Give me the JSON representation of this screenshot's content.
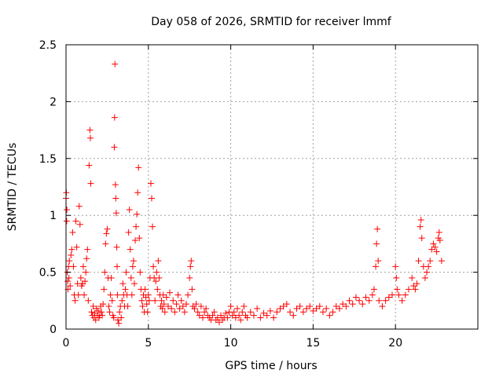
{
  "chart_data": {
    "type": "scatter",
    "title": "Day 058 of 2026, SRMTID for receiver lmmf",
    "xlabel": "GPS time / hours",
    "ylabel": "SRMTID / TECUs",
    "xlim": [
      0,
      25
    ],
    "ylim": [
      0,
      2.5
    ],
    "x_ticks": [
      0,
      5,
      10,
      15,
      20
    ],
    "x_tick_labels": [
      "0",
      "5",
      "10",
      "15",
      "20"
    ],
    "y_ticks": [
      0,
      0.5,
      1,
      1.5,
      2,
      2.5
    ],
    "y_tick_labels": [
      "0",
      "0.5",
      "1",
      "1.5",
      "2",
      "2.5"
    ],
    "grid": true,
    "marker": "+",
    "series": [
      {
        "name": "SRMTID",
        "color": "#ff0000",
        "points": [
          [
            0.0,
            1.15
          ],
          [
            0.02,
            1.2
          ],
          [
            0.04,
            0.95
          ],
          [
            0.05,
            1.05
          ],
          [
            0.08,
            0.5
          ],
          [
            0.1,
            0.42
          ],
          [
            0.12,
            0.35
          ],
          [
            0.15,
            0.55
          ],
          [
            0.18,
            0.45
          ],
          [
            0.2,
            0.6
          ],
          [
            0.25,
            0.38
          ],
          [
            0.3,
            0.65
          ],
          [
            0.35,
            0.7
          ],
          [
            0.4,
            0.85
          ],
          [
            0.45,
            0.55
          ],
          [
            0.5,
            0.3
          ],
          [
            0.55,
            0.25
          ],
          [
            0.6,
            0.95
          ],
          [
            0.65,
            0.72
          ],
          [
            0.7,
            0.4
          ],
          [
            0.75,
            0.3
          ],
          [
            0.8,
            1.08
          ],
          [
            0.85,
            0.92
          ],
          [
            0.9,
            0.45
          ],
          [
            0.95,
            0.38
          ],
          [
            1.0,
            0.4
          ],
          [
            1.05,
            0.55
          ],
          [
            1.1,
            0.3
          ],
          [
            1.15,
            0.42
          ],
          [
            1.2,
            0.5
          ],
          [
            1.25,
            0.62
          ],
          [
            1.3,
            0.7
          ],
          [
            1.35,
            0.25
          ],
          [
            1.4,
            1.44
          ],
          [
            1.45,
            1.75
          ],
          [
            1.48,
            1.68
          ],
          [
            1.5,
            1.28
          ],
          [
            1.55,
            0.15
          ],
          [
            1.6,
            0.12
          ],
          [
            1.65,
            0.2
          ],
          [
            1.7,
            0.1
          ],
          [
            1.75,
            0.14
          ],
          [
            1.8,
            0.08
          ],
          [
            1.85,
            0.18
          ],
          [
            1.9,
            0.12
          ],
          [
            1.95,
            0.16
          ],
          [
            2.0,
            0.1
          ],
          [
            2.05,
            0.12
          ],
          [
            2.1,
            0.2
          ],
          [
            2.15,
            0.15
          ],
          [
            2.2,
            0.12
          ],
          [
            2.25,
            0.22
          ],
          [
            2.3,
            0.35
          ],
          [
            2.35,
            0.5
          ],
          [
            2.4,
            0.75
          ],
          [
            2.45,
            0.84
          ],
          [
            2.5,
            0.88
          ],
          [
            2.55,
            0.45
          ],
          [
            2.6,
            0.2
          ],
          [
            2.65,
            0.15
          ],
          [
            2.7,
            0.3
          ],
          [
            2.75,
            0.45
          ],
          [
            2.8,
            0.25
          ],
          [
            2.85,
            0.12
          ],
          [
            2.9,
            0.1
          ],
          [
            2.93,
            1.6
          ],
          [
            2.95,
            1.86
          ],
          [
            2.97,
            2.33
          ],
          [
            3.0,
            1.27
          ],
          [
            3.02,
            1.15
          ],
          [
            3.05,
            1.02
          ],
          [
            3.08,
            0.72
          ],
          [
            3.1,
            0.55
          ],
          [
            3.12,
            0.3
          ],
          [
            3.15,
            0.08
          ],
          [
            3.2,
            0.05
          ],
          [
            3.25,
            0.15
          ],
          [
            3.3,
            0.2
          ],
          [
            3.35,
            0.1
          ],
          [
            3.4,
            0.25
          ],
          [
            3.45,
            0.4
          ],
          [
            3.5,
            0.3
          ],
          [
            3.55,
            0.2
          ],
          [
            3.6,
            0.35
          ],
          [
            3.65,
            0.5
          ],
          [
            3.7,
            0.3
          ],
          [
            3.75,
            0.2
          ],
          [
            3.8,
            0.85
          ],
          [
            3.85,
            1.05
          ],
          [
            3.9,
            0.7
          ],
          [
            3.95,
            0.45
          ],
          [
            4.0,
            0.3
          ],
          [
            4.05,
            0.55
          ],
          [
            4.1,
            0.6
          ],
          [
            4.15,
            0.4
          ],
          [
            4.2,
            0.78
          ],
          [
            4.25,
            0.9
          ],
          [
            4.3,
            1.01
          ],
          [
            4.35,
            1.2
          ],
          [
            4.4,
            1.42
          ],
          [
            4.45,
            0.8
          ],
          [
            4.5,
            0.5
          ],
          [
            4.55,
            0.35
          ],
          [
            4.6,
            0.25
          ],
          [
            4.65,
            0.2
          ],
          [
            4.7,
            0.3
          ],
          [
            4.75,
            0.15
          ],
          [
            4.8,
            0.35
          ],
          [
            4.85,
            0.28
          ],
          [
            4.9,
            0.22
          ],
          [
            4.95,
            0.15
          ],
          [
            5.0,
            0.3
          ],
          [
            5.05,
            0.25
          ],
          [
            5.1,
            0.45
          ],
          [
            5.15,
            1.28
          ],
          [
            5.2,
            1.15
          ],
          [
            5.25,
            0.9
          ],
          [
            5.3,
            0.55
          ],
          [
            5.35,
            0.45
          ],
          [
            5.4,
            0.25
          ],
          [
            5.45,
            0.42
          ],
          [
            5.5,
            0.5
          ],
          [
            5.55,
            0.35
          ],
          [
            5.6,
            0.6
          ],
          [
            5.65,
            0.45
          ],
          [
            5.7,
            0.3
          ],
          [
            5.75,
            0.2
          ],
          [
            5.8,
            0.25
          ],
          [
            5.85,
            0.18
          ],
          [
            5.9,
            0.3
          ],
          [
            5.95,
            0.22
          ],
          [
            6.0,
            0.15
          ],
          [
            6.1,
            0.28
          ],
          [
            6.2,
            0.2
          ],
          [
            6.3,
            0.32
          ],
          [
            6.4,
            0.18
          ],
          [
            6.5,
            0.25
          ],
          [
            6.6,
            0.15
          ],
          [
            6.7,
            0.22
          ],
          [
            6.8,
            0.3
          ],
          [
            6.9,
            0.18
          ],
          [
            7.0,
            0.25
          ],
          [
            7.1,
            0.2
          ],
          [
            7.2,
            0.15
          ],
          [
            7.3,
            0.22
          ],
          [
            7.4,
            0.3
          ],
          [
            7.5,
            0.45
          ],
          [
            7.55,
            0.55
          ],
          [
            7.6,
            0.6
          ],
          [
            7.65,
            0.35
          ],
          [
            7.7,
            0.2
          ],
          [
            7.8,
            0.18
          ],
          [
            7.9,
            0.22
          ],
          [
            8.0,
            0.15
          ],
          [
            8.1,
            0.12
          ],
          [
            8.2,
            0.2
          ],
          [
            8.3,
            0.1
          ],
          [
            8.4,
            0.15
          ],
          [
            8.5,
            0.18
          ],
          [
            8.6,
            0.12
          ],
          [
            8.7,
            0.1
          ],
          [
            8.8,
            0.08
          ],
          [
            8.9,
            0.12
          ],
          [
            9.0,
            0.15
          ],
          [
            9.1,
            0.08
          ],
          [
            9.2,
            0.1
          ],
          [
            9.3,
            0.06
          ],
          [
            9.4,
            0.12
          ],
          [
            9.5,
            0.08
          ],
          [
            9.6,
            0.1
          ],
          [
            9.7,
            0.14
          ],
          [
            9.8,
            0.1
          ],
          [
            9.9,
            0.15
          ],
          [
            10.0,
            0.2
          ],
          [
            10.1,
            0.12
          ],
          [
            10.2,
            0.15
          ],
          [
            10.3,
            0.1
          ],
          [
            10.4,
            0.18
          ],
          [
            10.5,
            0.12
          ],
          [
            10.6,
            0.08
          ],
          [
            10.7,
            0.15
          ],
          [
            10.8,
            0.2
          ],
          [
            10.9,
            0.12
          ],
          [
            11.0,
            0.1
          ],
          [
            11.2,
            0.15
          ],
          [
            11.4,
            0.12
          ],
          [
            11.6,
            0.18
          ],
          [
            11.8,
            0.1
          ],
          [
            12.0,
            0.14
          ],
          [
            12.2,
            0.12
          ],
          [
            12.4,
            0.16
          ],
          [
            12.6,
            0.1
          ],
          [
            12.8,
            0.15
          ],
          [
            13.0,
            0.18
          ],
          [
            13.2,
            0.2
          ],
          [
            13.4,
            0.22
          ],
          [
            13.6,
            0.15
          ],
          [
            13.8,
            0.12
          ],
          [
            14.0,
            0.18
          ],
          [
            14.2,
            0.2
          ],
          [
            14.4,
            0.15
          ],
          [
            14.6,
            0.18
          ],
          [
            14.8,
            0.2
          ],
          [
            15.0,
            0.16
          ],
          [
            15.2,
            0.18
          ],
          [
            15.4,
            0.2
          ],
          [
            15.6,
            0.15
          ],
          [
            15.8,
            0.18
          ],
          [
            16.0,
            0.12
          ],
          [
            16.2,
            0.15
          ],
          [
            16.4,
            0.2
          ],
          [
            16.6,
            0.18
          ],
          [
            16.8,
            0.22
          ],
          [
            17.0,
            0.2
          ],
          [
            17.2,
            0.25
          ],
          [
            17.4,
            0.22
          ],
          [
            17.6,
            0.28
          ],
          [
            17.8,
            0.25
          ],
          [
            18.0,
            0.22
          ],
          [
            18.2,
            0.28
          ],
          [
            18.4,
            0.25
          ],
          [
            18.6,
            0.3
          ],
          [
            18.7,
            0.35
          ],
          [
            18.8,
            0.55
          ],
          [
            18.85,
            0.75
          ],
          [
            18.9,
            0.88
          ],
          [
            18.95,
            0.6
          ],
          [
            19.0,
            0.25
          ],
          [
            19.2,
            0.2
          ],
          [
            19.4,
            0.25
          ],
          [
            19.6,
            0.28
          ],
          [
            19.8,
            0.3
          ],
          [
            20.0,
            0.55
          ],
          [
            20.05,
            0.45
          ],
          [
            20.1,
            0.35
          ],
          [
            20.2,
            0.3
          ],
          [
            20.4,
            0.25
          ],
          [
            20.6,
            0.3
          ],
          [
            20.8,
            0.35
          ],
          [
            21.0,
            0.45
          ],
          [
            21.1,
            0.38
          ],
          [
            21.2,
            0.35
          ],
          [
            21.3,
            0.4
          ],
          [
            21.4,
            0.6
          ],
          [
            21.5,
            0.9
          ],
          [
            21.55,
            0.96
          ],
          [
            21.6,
            0.8
          ],
          [
            21.7,
            0.55
          ],
          [
            21.8,
            0.45
          ],
          [
            21.9,
            0.5
          ],
          [
            22.0,
            0.55
          ],
          [
            22.1,
            0.6
          ],
          [
            22.2,
            0.7
          ],
          [
            22.3,
            0.75
          ],
          [
            22.4,
            0.72
          ],
          [
            22.5,
            0.68
          ],
          [
            22.6,
            0.8
          ],
          [
            22.65,
            0.85
          ],
          [
            22.7,
            0.78
          ],
          [
            22.8,
            0.6
          ]
        ]
      }
    ]
  }
}
